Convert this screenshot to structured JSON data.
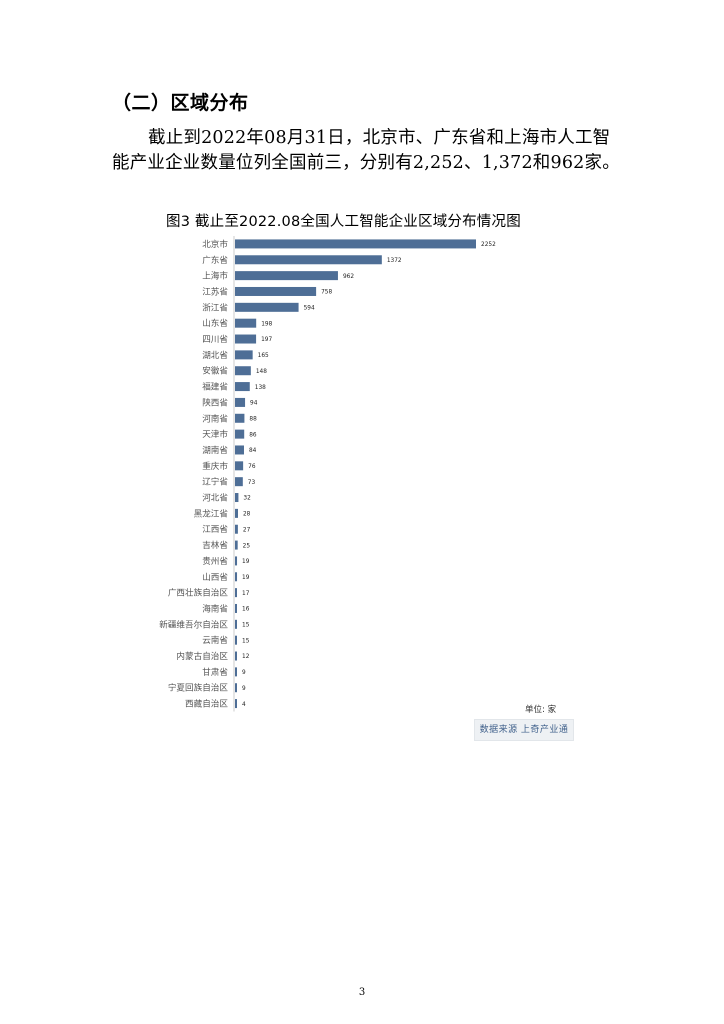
{
  "document": {
    "heading": "（二）区域分布",
    "paragraph": "截止到2022年08月31日，北京市、广东省和上海市人工智能产业企业数量位列全国前三，分别有2,252、1,372和962家。",
    "figure_title": "图3 截止至2022.08全国人工智能企业区域分布情况图",
    "unit_label": "单位: 家",
    "source_label": "数据来源 上奇产业通",
    "page_number": "3"
  },
  "colors": {
    "bar": "#4e6e96",
    "label": "#555555",
    "axis": "#bfbfbf"
  },
  "chart_data": {
    "type": "bar",
    "orientation": "horizontal",
    "categories": [
      "北京市",
      "广东省",
      "上海市",
      "江苏省",
      "浙江省",
      "山东省",
      "四川省",
      "湖北省",
      "安徽省",
      "福建省",
      "陕西省",
      "河南省",
      "天津市",
      "湖南省",
      "重庆市",
      "辽宁省",
      "河北省",
      "黑龙江省",
      "江西省",
      "吉林省",
      "贵州省",
      "山西省",
      "广西壮族自治区",
      "海南省",
      "新疆维吾尔自治区",
      "云南省",
      "内蒙古自治区",
      "甘肃省",
      "宁夏回族自治区",
      "西藏自治区"
    ],
    "values": [
      2252,
      1372,
      962,
      758,
      594,
      198,
      197,
      165,
      148,
      138,
      94,
      88,
      86,
      84,
      76,
      73,
      32,
      28,
      27,
      25,
      19,
      19,
      17,
      16,
      15,
      15,
      12,
      9,
      9,
      4
    ],
    "xlim": [
      0,
      2252
    ],
    "data_labels": true,
    "grid": false,
    "legend": "none"
  }
}
